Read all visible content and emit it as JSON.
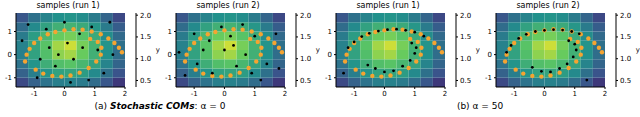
{
  "chart_data": [
    {
      "type": "scatter",
      "title": "samples (run 1)",
      "xlim": [
        -1.6,
        2.0
      ],
      "ylim": [
        -1.4,
        1.8
      ],
      "xticks": [
        -1,
        0,
        1,
        2
      ],
      "yticks": [
        -1,
        0,
        1
      ],
      "heatmap": {
        "x": [
          -1.4,
          -1.0,
          -0.6,
          -0.2,
          0.2,
          0.6,
          1.0,
          1.4,
          1.8
        ],
        "y": [
          -1.2,
          -0.8,
          -0.4,
          0,
          0.4,
          0.8,
          1.2,
          1.6
        ],
        "values": [
          [
            0.73,
            0.88,
            1.0,
            1.08,
            1.1,
            1.05,
            0.95,
            0.81,
            0.64
          ],
          [
            0.88,
            1.07,
            1.22,
            1.32,
            1.34,
            1.28,
            1.15,
            0.98,
            0.79
          ],
          [
            1.0,
            1.22,
            1.41,
            1.54,
            1.58,
            1.48,
            1.32,
            1.11,
            0.9
          ],
          [
            1.08,
            1.32,
            1.54,
            1.75,
            1.81,
            1.65,
            1.43,
            1.2,
            0.96
          ],
          [
            1.1,
            1.34,
            1.58,
            1.81,
            1.92,
            1.69,
            1.45,
            1.22,
            0.98
          ],
          [
            1.05,
            1.28,
            1.48,
            1.65,
            1.69,
            1.58,
            1.38,
            1.17,
            0.94
          ],
          [
            0.95,
            1.15,
            1.32,
            1.43,
            1.45,
            1.38,
            1.24,
            1.05,
            0.85
          ],
          [
            0.81,
            0.98,
            1.11,
            1.2,
            1.22,
            1.17,
            1.05,
            0.9,
            0.72
          ]
        ]
      },
      "colorbar": {
        "range": [
          0.35,
          2.05
        ],
        "ticks": [
          0.5,
          {
            "value": 1,
            "label": "1.0"
          },
          1.5,
          {
            "value": 2,
            "label": "2.0"
          }
        ],
        "label": "y"
      },
      "series": [
        {
          "color": "#f5a431",
          "marker": "circle",
          "x": [
            -1.3,
            -1.25,
            -1.15,
            -1.0,
            -0.8,
            -0.55,
            -0.3,
            0,
            0.3,
            0.6,
            0.9,
            1.2,
            1.45,
            1.65,
            1.8,
            1.9,
            -0.95,
            -0.7,
            -0.4,
            -0.1,
            0.2,
            0.5,
            0.8,
            1.05,
            1.2,
            1.22,
            1.1,
            0.85
          ],
          "y": [
            -0.3,
            0.0,
            0.25,
            0.5,
            0.7,
            0.88,
            0.98,
            1.05,
            1.1,
            1.08,
            1.0,
            0.88,
            0.7,
            0.5,
            0.3,
            0.1,
            -0.65,
            -0.82,
            -0.92,
            -0.95,
            -0.9,
            -0.78,
            -0.58,
            -0.3,
            0.0,
            0.3,
            0.55,
            0.68
          ]
        },
        {
          "color": "#000000",
          "marker": "circle",
          "x": [
            -1.2,
            -0.8,
            -0.5,
            -0.3,
            0.1,
            0.3,
            0.6,
            0.9,
            1.3,
            -0.9,
            0.0,
            0.5,
            1.6,
            -1.4,
            -0.2,
            0.8,
            1.1,
            -0.6,
            0.2,
            1.5
          ],
          "y": [
            1.3,
            -0.2,
            0.3,
            -0.5,
            0.5,
            -0.2,
            0.3,
            1.2,
            -0.8,
            -1.0,
            1.4,
            0.9,
            0.0,
            0.6,
            0.0,
            -1.1,
            0.2,
            1.1,
            -1.2,
            1.4
          ]
        }
      ]
    },
    {
      "type": "scatter",
      "title": "samples (run 2)",
      "xlim": [
        -1.6,
        2.0
      ],
      "ylim": [
        -1.4,
        1.8
      ],
      "xticks": [
        -1,
        0,
        1,
        2
      ],
      "yticks": [
        -1,
        0,
        1
      ],
      "heatmap": {
        "x": [
          -1.4,
          -1.0,
          -0.6,
          -0.2,
          0.2,
          0.6,
          1.0,
          1.4,
          1.8
        ],
        "y": [
          -1.2,
          -0.8,
          -0.4,
          0,
          0.4,
          0.8,
          1.2,
          1.6
        ],
        "values": [
          [
            0.73,
            0.88,
            1.0,
            1.08,
            1.1,
            1.05,
            0.95,
            0.81,
            0.64
          ],
          [
            0.88,
            1.07,
            1.22,
            1.32,
            1.34,
            1.28,
            1.15,
            0.98,
            0.79
          ],
          [
            1.0,
            1.22,
            1.41,
            1.54,
            1.58,
            1.48,
            1.32,
            1.11,
            0.9
          ],
          [
            1.08,
            1.32,
            1.54,
            1.75,
            1.81,
            1.65,
            1.43,
            1.2,
            0.96
          ],
          [
            1.1,
            1.34,
            1.58,
            1.81,
            1.92,
            1.69,
            1.45,
            1.22,
            0.98
          ],
          [
            1.05,
            1.28,
            1.48,
            1.65,
            1.69,
            1.58,
            1.38,
            1.17,
            0.94
          ],
          [
            0.95,
            1.15,
            1.32,
            1.43,
            1.45,
            1.38,
            1.24,
            1.05,
            0.85
          ],
          [
            0.81,
            0.98,
            1.11,
            1.2,
            1.22,
            1.17,
            1.05,
            0.9,
            0.72
          ]
        ]
      },
      "colorbar": {
        "range": [
          0.35,
          2.05
        ],
        "ticks": [
          0.5,
          {
            "value": 1,
            "label": "1.0"
          },
          1.5,
          {
            "value": 2,
            "label": "2.0"
          }
        ],
        "label": "y"
      },
      "series": [
        {
          "color": "#f5a431",
          "marker": "circle",
          "x": [
            -1.3,
            -1.25,
            -1.15,
            -1.0,
            -0.8,
            -0.55,
            -0.3,
            0,
            0.3,
            0.6,
            0.9,
            1.2,
            1.45,
            1.65,
            1.8,
            1.9,
            -0.95,
            -0.7,
            -0.4,
            -0.1,
            0.2,
            0.5,
            0.8,
            1.05,
            1.2,
            1.22,
            1.1,
            0.85
          ],
          "y": [
            -0.3,
            0.0,
            0.25,
            0.5,
            0.7,
            0.88,
            0.98,
            1.05,
            1.1,
            1.08,
            1.0,
            0.88,
            0.7,
            0.5,
            0.3,
            0.1,
            -0.65,
            -0.82,
            -0.92,
            -0.95,
            -0.9,
            -0.78,
            -0.58,
            -0.3,
            0.0,
            0.3,
            0.55,
            0.68
          ]
        },
        {
          "color": "#000000",
          "marker": "circle",
          "x": [
            -1.0,
            -0.7,
            -0.4,
            0.0,
            0.2,
            0.4,
            0.7,
            1.0,
            1.4,
            -1.3,
            -0.1,
            0.6,
            1.7,
            -1.5,
            0.3,
            1.2,
            -0.5,
            0.9,
            -0.9,
            1.8
          ],
          "y": [
            0.9,
            0.2,
            -0.8,
            0.2,
            0.8,
            -0.5,
            0.0,
            0.8,
            -0.4,
            -0.9,
            1.2,
            1.3,
            0.9,
            0.1,
            0.4,
            -1.1,
            0.6,
            -0.8,
            -0.4,
            -0.6
          ]
        }
      ]
    },
    {
      "type": "scatter",
      "title": "samples (run 1)",
      "xlim": [
        -1.6,
        2.0
      ],
      "ylim": [
        -1.4,
        1.8
      ],
      "xticks": [
        -1,
        0,
        1,
        2
      ],
      "yticks": [
        -1,
        0,
        1
      ],
      "heatmap": {
        "x": [
          -1.4,
          -1.0,
          -0.6,
          -0.2,
          0.2,
          0.6,
          1.0,
          1.4,
          1.8
        ],
        "y": [
          -1.2,
          -0.8,
          -0.4,
          0,
          0.4,
          0.8,
          1.2,
          1.6
        ],
        "values": [
          [
            0.73,
            0.88,
            1.0,
            1.08,
            1.1,
            1.05,
            0.95,
            0.81,
            0.64
          ],
          [
            0.88,
            1.07,
            1.22,
            1.32,
            1.34,
            1.28,
            1.15,
            0.98,
            0.79
          ],
          [
            1.0,
            1.22,
            1.41,
            1.54,
            1.58,
            1.48,
            1.32,
            1.11,
            0.9
          ],
          [
            1.08,
            1.32,
            1.54,
            1.75,
            1.81,
            1.65,
            1.43,
            1.2,
            0.96
          ],
          [
            1.1,
            1.34,
            1.58,
            1.81,
            1.92,
            1.69,
            1.45,
            1.22,
            0.98
          ],
          [
            1.05,
            1.28,
            1.48,
            1.65,
            1.69,
            1.58,
            1.38,
            1.17,
            0.94
          ],
          [
            0.95,
            1.15,
            1.32,
            1.43,
            1.45,
            1.38,
            1.24,
            1.05,
            0.85
          ],
          [
            0.81,
            0.98,
            1.11,
            1.2,
            1.22,
            1.17,
            1.05,
            0.9,
            0.72
          ]
        ]
      },
      "colorbar": {
        "range": [
          0.35,
          2.05
        ],
        "ticks": [
          0.5,
          {
            "value": 1,
            "label": "1.0"
          },
          1.5,
          {
            "value": 2,
            "label": "2.0"
          }
        ],
        "label": "y"
      },
      "series": [
        {
          "color": "#f5a431",
          "marker": "circle",
          "x": [
            -1.3,
            -1.25,
            -1.15,
            -1.0,
            -0.8,
            -0.55,
            -0.3,
            0,
            0.3,
            0.6,
            0.9,
            1.2,
            1.45,
            1.65,
            1.8,
            1.9,
            -0.95,
            -0.7,
            -0.4,
            -0.1,
            0.2,
            0.5,
            0.8,
            1.05,
            1.2,
            1.22,
            1.1,
            0.85
          ],
          "y": [
            -0.3,
            0.0,
            0.25,
            0.5,
            0.7,
            0.88,
            0.98,
            1.05,
            1.1,
            1.08,
            1.0,
            0.88,
            0.7,
            0.5,
            0.3,
            0.1,
            -0.65,
            -0.82,
            -0.92,
            -0.95,
            -0.9,
            -0.78,
            -0.58,
            -0.3,
            0.0,
            0.3,
            0.55,
            0.68
          ]
        },
        {
          "color": "#000000",
          "marker": "circle",
          "x": [
            -1.2,
            -1.0,
            -0.75,
            -0.5,
            -0.2,
            0.1,
            0.4,
            0.7,
            1.0,
            1.3,
            -0.3,
            0.0,
            0.3,
            0.6,
            0.85,
            1.0,
            1.05,
            0.9,
            -0.55,
            -1.35
          ],
          "y": [
            0.3,
            0.55,
            0.78,
            0.92,
            1.02,
            1.08,
            1.1,
            1.05,
            0.97,
            0.8,
            -0.6,
            -0.75,
            -0.7,
            -0.5,
            -0.25,
            0.05,
            0.3,
            0.5,
            -0.45,
            -0.8
          ]
        }
      ]
    },
    {
      "type": "scatter",
      "title": "samples (run 2)",
      "xlim": [
        -1.6,
        2.0
      ],
      "ylim": [
        -1.4,
        1.8
      ],
      "xticks": [
        -1,
        0,
        1,
        2
      ],
      "yticks": [
        -1,
        0,
        1
      ],
      "heatmap": {
        "x": [
          -1.4,
          -1.0,
          -0.6,
          -0.2,
          0.2,
          0.6,
          1.0,
          1.4,
          1.8
        ],
        "y": [
          -1.2,
          -0.8,
          -0.4,
          0,
          0.4,
          0.8,
          1.2,
          1.6
        ],
        "values": [
          [
            0.73,
            0.88,
            1.0,
            1.08,
            1.1,
            1.05,
            0.95,
            0.81,
            0.64
          ],
          [
            0.88,
            1.07,
            1.22,
            1.32,
            1.34,
            1.28,
            1.15,
            0.98,
            0.79
          ],
          [
            1.0,
            1.22,
            1.41,
            1.54,
            1.58,
            1.48,
            1.32,
            1.11,
            0.9
          ],
          [
            1.08,
            1.32,
            1.54,
            1.75,
            1.81,
            1.65,
            1.43,
            1.2,
            0.96
          ],
          [
            1.1,
            1.34,
            1.58,
            1.81,
            1.92,
            1.69,
            1.45,
            1.22,
            0.98
          ],
          [
            1.05,
            1.28,
            1.48,
            1.65,
            1.69,
            1.58,
            1.38,
            1.17,
            0.94
          ],
          [
            0.95,
            1.15,
            1.32,
            1.43,
            1.45,
            1.38,
            1.24,
            1.05,
            0.85
          ],
          [
            0.81,
            0.98,
            1.11,
            1.2,
            1.22,
            1.17,
            1.05,
            0.9,
            0.72
          ]
        ]
      },
      "colorbar": {
        "range": [
          0.35,
          2.05
        ],
        "ticks": [
          0.5,
          {
            "value": 1,
            "label": "1.0"
          },
          1.5,
          {
            "value": 2,
            "label": "2.0"
          }
        ],
        "label": "y"
      },
      "series": [
        {
          "color": "#f5a431",
          "marker": "circle",
          "x": [
            -1.3,
            -1.25,
            -1.15,
            -1.0,
            -0.8,
            -0.55,
            -0.3,
            0,
            0.3,
            0.6,
            0.9,
            1.2,
            1.45,
            1.65,
            1.8,
            1.9,
            -0.95,
            -0.7,
            -0.4,
            -0.1,
            0.2,
            0.5,
            0.8,
            1.05,
            1.2,
            1.22,
            1.1,
            0.85
          ],
          "y": [
            -0.3,
            0.0,
            0.25,
            0.5,
            0.7,
            0.88,
            0.98,
            1.05,
            1.1,
            1.08,
            1.0,
            0.88,
            0.7,
            0.5,
            0.3,
            0.1,
            -0.65,
            -0.82,
            -0.92,
            -0.95,
            -0.9,
            -0.78,
            -0.58,
            -0.3,
            0.0,
            0.3,
            0.55,
            0.68
          ]
        },
        {
          "color": "#000000",
          "marker": "circle",
          "x": [
            -1.25,
            -1.1,
            -0.85,
            -0.6,
            -0.3,
            0,
            0.3,
            0.6,
            0.9,
            1.15,
            -0.4,
            -0.1,
            0.2,
            0.5,
            0.75,
            0.95,
            1.05,
            1.0,
            0.8,
            1.4
          ],
          "y": [
            0.1,
            0.4,
            0.7,
            0.88,
            1.0,
            1.05,
            1.08,
            1.06,
            1.0,
            0.9,
            -0.55,
            -0.72,
            -0.75,
            -0.6,
            -0.4,
            -0.1,
            0.2,
            0.45,
            0.6,
            -1.1
          ]
        }
      ]
    }
  ],
  "captions": [
    {
      "parts": [
        {
          "text": "(a) "
        },
        {
          "text": "Stochastic COMs",
          "style": "bold italic"
        },
        {
          "text": ": α = 0"
        }
      ]
    },
    {
      "parts": [
        {
          "text": "(b) α = 50"
        }
      ]
    }
  ]
}
